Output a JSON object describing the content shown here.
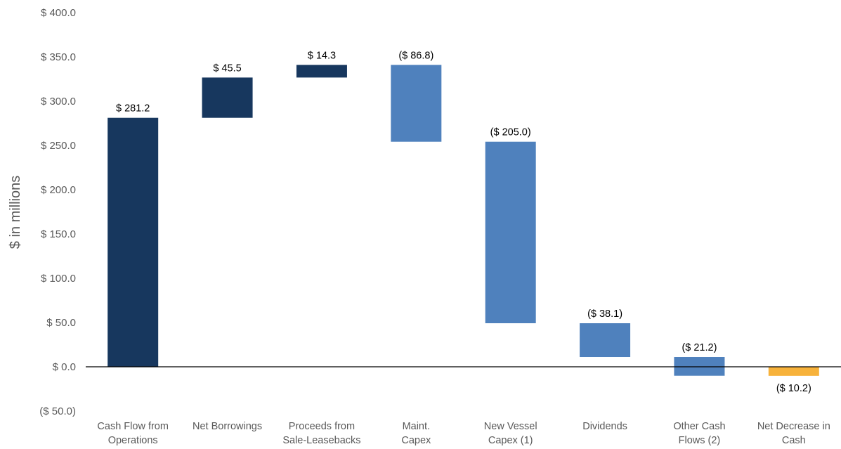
{
  "chart_data": {
    "type": "waterfall",
    "title": "",
    "xlabel": "",
    "ylabel": "$ in millions",
    "ylim": [
      -50,
      400
    ],
    "yticks": [
      400,
      350,
      300,
      250,
      200,
      150,
      100,
      50,
      0,
      -50
    ],
    "ytick_labels": [
      "$ 400.0",
      "$ 350.0",
      "$ 300.0",
      "$ 250.0",
      "$ 200.0",
      "$ 150.0",
      "$ 100.0",
      "$ 50.0",
      "$ 0.0",
      "($ 50.0)"
    ],
    "grid": false,
    "legend": "none",
    "categories": [
      [
        "Cash Flow from",
        "Operations"
      ],
      [
        "Net Borrowings"
      ],
      [
        "Proceeds from",
        "Sale-Leasebacks"
      ],
      [
        "Maint.",
        "Capex"
      ],
      [
        "New Vessel",
        "Capex (1)"
      ],
      [
        "Dividends"
      ],
      [
        "Other Cash",
        "Flows (2)"
      ],
      [
        "Net Decrease in",
        "Cash"
      ]
    ],
    "bars": [
      {
        "start": 0,
        "end": 281.2,
        "value": 281.2,
        "label": "$ 281.2",
        "kind": "increase"
      },
      {
        "start": 281.2,
        "end": 326.7,
        "value": 45.5,
        "label": "$ 45.5",
        "kind": "increase"
      },
      {
        "start": 326.7,
        "end": 341.0,
        "value": 14.3,
        "label": "$ 14.3",
        "kind": "increase"
      },
      {
        "start": 341.0,
        "end": 254.2,
        "value": -86.8,
        "label": "($ 86.8)",
        "kind": "decrease"
      },
      {
        "start": 254.2,
        "end": 49.2,
        "value": -205.0,
        "label": "($ 205.0)",
        "kind": "decrease"
      },
      {
        "start": 49.2,
        "end": 11.1,
        "value": -38.1,
        "label": "($ 38.1)",
        "kind": "decrease"
      },
      {
        "start": 11.1,
        "end": -10.1,
        "value": -21.2,
        "label": "($ 21.2)",
        "kind": "decrease"
      },
      {
        "start": 0,
        "end": -10.2,
        "value": -10.2,
        "label": "($ 10.2)",
        "kind": "total"
      }
    ],
    "colors": {
      "increase": "#17375e",
      "decrease": "#4f81bd",
      "total": "#f7b23b",
      "axis": "#000000",
      "text": "#595959"
    }
  }
}
